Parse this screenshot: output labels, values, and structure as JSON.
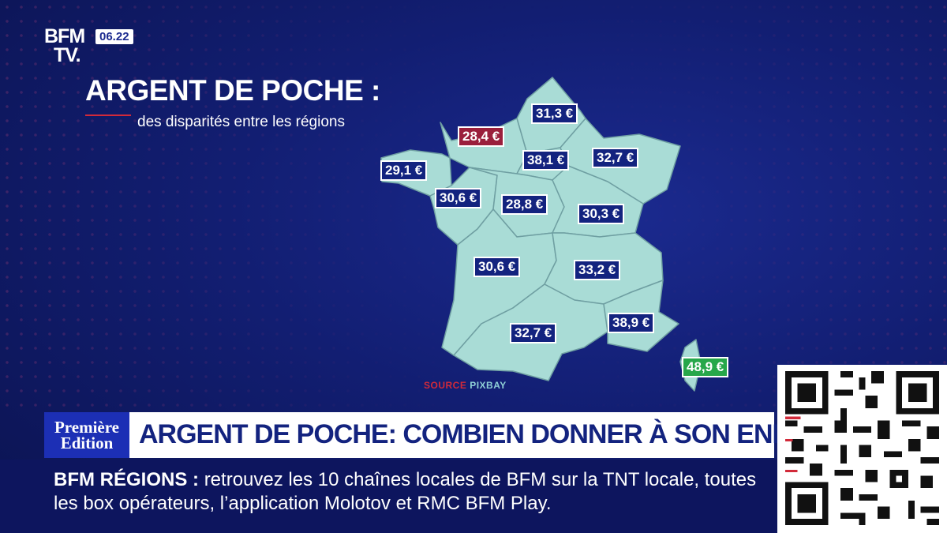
{
  "channel": {
    "logo_line1": "BFM",
    "logo_line2": "TV.",
    "time": "06.22"
  },
  "infographic": {
    "title": "ARGENT DE POCHE :",
    "subtitle": "des disparités entre les régions",
    "source_label": "SOURCE",
    "source_name": "PIXBAY",
    "regions": [
      {
        "name": "Hauts-de-France",
        "value": "31,3 €",
        "highlight": "none"
      },
      {
        "name": "Normandie",
        "value": "28,4 €",
        "highlight": "lowest"
      },
      {
        "name": "Bretagne",
        "value": "29,1 €",
        "highlight": "none"
      },
      {
        "name": "Île-de-France",
        "value": "38,1 €",
        "highlight": "none"
      },
      {
        "name": "Grand Est",
        "value": "32,7 €",
        "highlight": "none"
      },
      {
        "name": "Pays de la Loire",
        "value": "30,6 €",
        "highlight": "none"
      },
      {
        "name": "Centre-Val de Loire",
        "value": "28,8 €",
        "highlight": "none"
      },
      {
        "name": "Bourgogne-Franche-Comté",
        "value": "30,3 €",
        "highlight": "none"
      },
      {
        "name": "Nouvelle-Aquitaine",
        "value": "30,6 €",
        "highlight": "none"
      },
      {
        "name": "Auvergne-Rhône-Alpes",
        "value": "33,2 €",
        "highlight": "none"
      },
      {
        "name": "Occitanie",
        "value": "32,7 €",
        "highlight": "none"
      },
      {
        "name": "Provence-Alpes-Côte d'Azur",
        "value": "38,9 €",
        "highlight": "none"
      },
      {
        "name": "Corse",
        "value": "48,9 €",
        "highlight": "highest"
      }
    ],
    "colors": {
      "map_fill": "#a9dcd6",
      "badge": "#13237f",
      "lowest": "#9a1f3c",
      "highest": "#27a74a"
    }
  },
  "headline": {
    "edition_line1": "Première",
    "edition_line2": "Edition",
    "text": "ARGENT DE POCHE: COMBIEN DONNER À SON ENFANT ?"
  },
  "ticker": {
    "label": "BFM RÉGIONS",
    "separator": ":",
    "text": "retrouvez les 10 chaînes locales de BFM sur la TNT locale, toutes les box opérateurs, l’application Molotov et RMC BFM Play."
  }
}
